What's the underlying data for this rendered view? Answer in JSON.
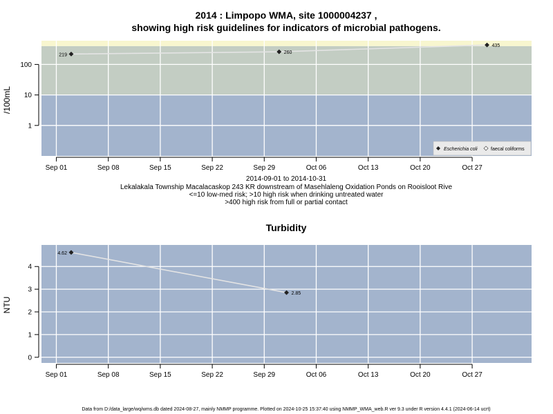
{
  "chart_data": [
    {
      "type": "line",
      "title_line1": "2014 : Limpopo WMA, site 1000004237 ,",
      "title_line2": "showing high risk guidelines for indicators of microbial pathogens.",
      "ylabel": "/100mL",
      "y_scale": "log10",
      "ylim": [
        0.1,
        600
      ],
      "y_ticks": [
        1,
        10,
        100
      ],
      "y_tick_labels": [
        "1",
        "10",
        "100"
      ],
      "x_tick_labels": [
        "Sep 01",
        "Sep 08",
        "Sep 15",
        "Sep 22",
        "Sep 29",
        "Oct 06",
        "Oct 13",
        "Oct 20",
        "Oct 27"
      ],
      "xlim": [
        "2014-08-30",
        "2014-11-04"
      ],
      "risk_bands": [
        {
          "from": 0.1,
          "to": 10,
          "color": "#a3b4cd"
        },
        {
          "from": 10,
          "to": 400,
          "color": "#c3cdc3"
        },
        {
          "from": 400,
          "to": 600,
          "color": "#f8f6cf"
        }
      ],
      "series": [
        {
          "name": "Escherichia coli",
          "x": [
            "2014-09-03",
            "2014-10-01",
            "2014-10-29"
          ],
          "y": [
            219,
            260,
            435
          ],
          "labels": [
            "219",
            "260",
            "435"
          ]
        },
        {
          "name": "faecal coliforms",
          "x": [],
          "y": []
        }
      ],
      "legend_position": "bottom-right",
      "grid": true,
      "caption": [
        "2014-09-01 to 2014-10-31",
        "Lekalakala Township Macalacaskop 243 KR downstream of Masehlaleng Oxidation Ponds on Rooisloot Rive",
        "<=10 low-med risk; >10 high risk when drinking untreated water",
        ">400 high risk from full or partial contact"
      ]
    },
    {
      "type": "line",
      "title": "Turbidity",
      "ylabel": "NTU",
      "ylim": [
        -0.25,
        4.95
      ],
      "y_ticks": [
        0,
        1,
        2,
        3,
        4
      ],
      "y_tick_labels": [
        "0",
        "1",
        "2",
        "3",
        "4"
      ],
      "x_tick_labels": [
        "Sep 01",
        "Sep 08",
        "Sep 15",
        "Sep 22",
        "Sep 29",
        "Oct 06",
        "Oct 13",
        "Oct 20",
        "Oct 27"
      ],
      "xlim": [
        "2014-08-30",
        "2014-11-04"
      ],
      "background_color": "#a3b4cd",
      "series": [
        {
          "name": "",
          "x": [
            "2014-09-03",
            "2014-10-02"
          ],
          "y": [
            4.62,
            2.85
          ],
          "labels": [
            "4.62",
            "2.85"
          ]
        }
      ],
      "grid": true
    }
  ],
  "footer": "Data from D:/data_large/wq/wms.db dated 2024-08-27, mainly NMMP programme. Plotted on 2024-10-25 15:37:40 using NMMP_WMA_web.R ver 9.3 under R version 4.4.1 (2024-06-14 ucrt)"
}
